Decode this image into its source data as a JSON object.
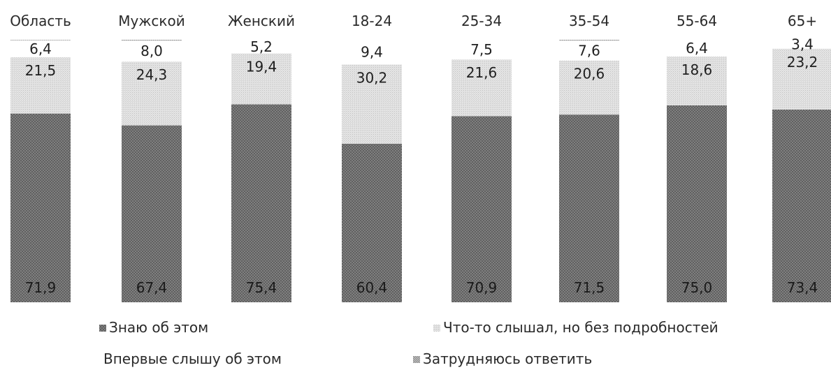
{
  "chart_data": {
    "type": "bar",
    "stacked": true,
    "percent_stacked": true,
    "categories": [
      "Область",
      "Мужской",
      "Женский",
      "18-24",
      "25-34",
      "35-54",
      "55-64",
      "65+"
    ],
    "series": [
      {
        "name": "Знаю об этом",
        "values": [
          71.9,
          67.4,
          75.4,
          60.4,
          70.9,
          71.5,
          75.0,
          73.4
        ],
        "labels": [
          "71,9",
          "67,4",
          "75,4",
          "60,4",
          "70,9",
          "71,5",
          "75,0",
          "73,4"
        ]
      },
      {
        "name": "Что-то слышал, но без подробностей",
        "values": [
          21.5,
          24.3,
          19.4,
          30.2,
          21.6,
          20.6,
          18.6,
          23.2
        ],
        "labels": [
          "21,5",
          "24,3",
          "19,4",
          "30,2",
          "21,6",
          "20,6",
          "18,6",
          "23,2"
        ]
      },
      {
        "name": "Впервые слышу об этом",
        "values": [
          6.4,
          8.0,
          5.2,
          9.4,
          7.5,
          7.6,
          6.4,
          3.4
        ],
        "labels": [
          "6,4",
          "8,0",
          "5,2",
          "9,4",
          "7,5",
          "7,6",
          "6,4",
          "3,4"
        ]
      },
      {
        "name": "Затрудняюсь ответить",
        "values": [
          0.2,
          0.3,
          0.0,
          0.0,
          0.0,
          0.3,
          0.0,
          0.0
        ],
        "labels": [
          "",
          "",
          "",
          "",
          "",
          "",
          "",
          ""
        ]
      }
    ],
    "colors": {
      "know": "#7a7a7a",
      "heard": "#d9d9d9",
      "first": "#ffffff",
      "hard": "#b0b0b0",
      "text": "#222222"
    },
    "title": "",
    "xlabel": "",
    "ylabel": "",
    "ylim": [
      0,
      100
    ],
    "grid": false,
    "legend_position": "bottom"
  }
}
